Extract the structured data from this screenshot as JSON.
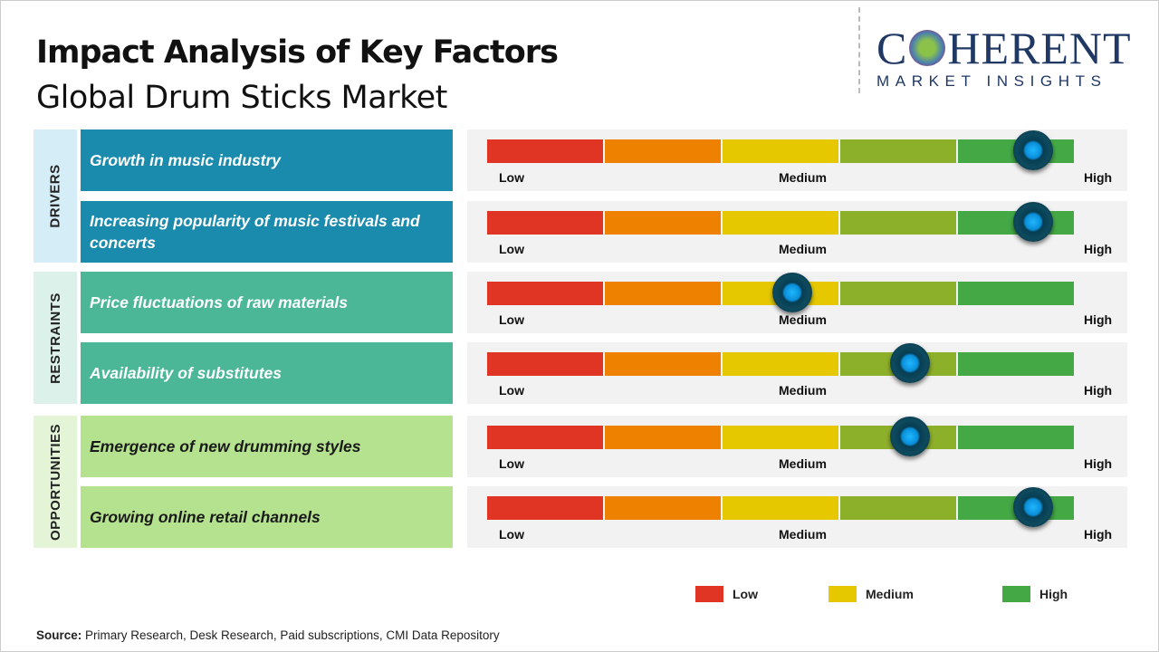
{
  "title": "Impact Analysis of Key Factors",
  "subtitle": "Global Drum Sticks Market",
  "logo": {
    "line1": "COHERENT",
    "line2": "MARKET INSIGHTS"
  },
  "colors": {
    "low": "#e03424",
    "low_mid": "#ee8100",
    "medium": "#e5c800",
    "mid_high": "#8db02a",
    "high": "#44a845",
    "drivers": "#1a8aad",
    "restraints": "#4bb797",
    "opportunities": "#b5e28e"
  },
  "chart_data": {
    "type": "gauge-scale",
    "scale_labels": {
      "low": "Low",
      "medium": "Medium",
      "high": "High"
    },
    "categories": [
      {
        "name": "DRIVERS",
        "factors": [
          {
            "label": "Growth in music industry",
            "impact": 0.93
          },
          {
            "label": "Increasing popularity of music festivals and concerts",
            "impact": 0.93
          }
        ]
      },
      {
        "name": "RESTRAINTS",
        "factors": [
          {
            "label": "Price fluctuations of raw materials",
            "impact": 0.52
          },
          {
            "label": "Availability of substitutes",
            "impact": 0.72
          }
        ]
      },
      {
        "name": "OPPORTUNITIES",
        "factors": [
          {
            "label": "Emergence of new drumming styles",
            "impact": 0.72
          },
          {
            "label": "Growing online retail channels",
            "impact": 0.93
          }
        ]
      }
    ],
    "legend": [
      {
        "label": "Low",
        "color": "#e03424"
      },
      {
        "label": "Medium",
        "color": "#e5c800"
      },
      {
        "label": "High",
        "color": "#44a845"
      }
    ]
  },
  "source": {
    "label": "Source:",
    "text": " Primary Research, Desk Research, Paid subscriptions, CMI Data Repository"
  }
}
